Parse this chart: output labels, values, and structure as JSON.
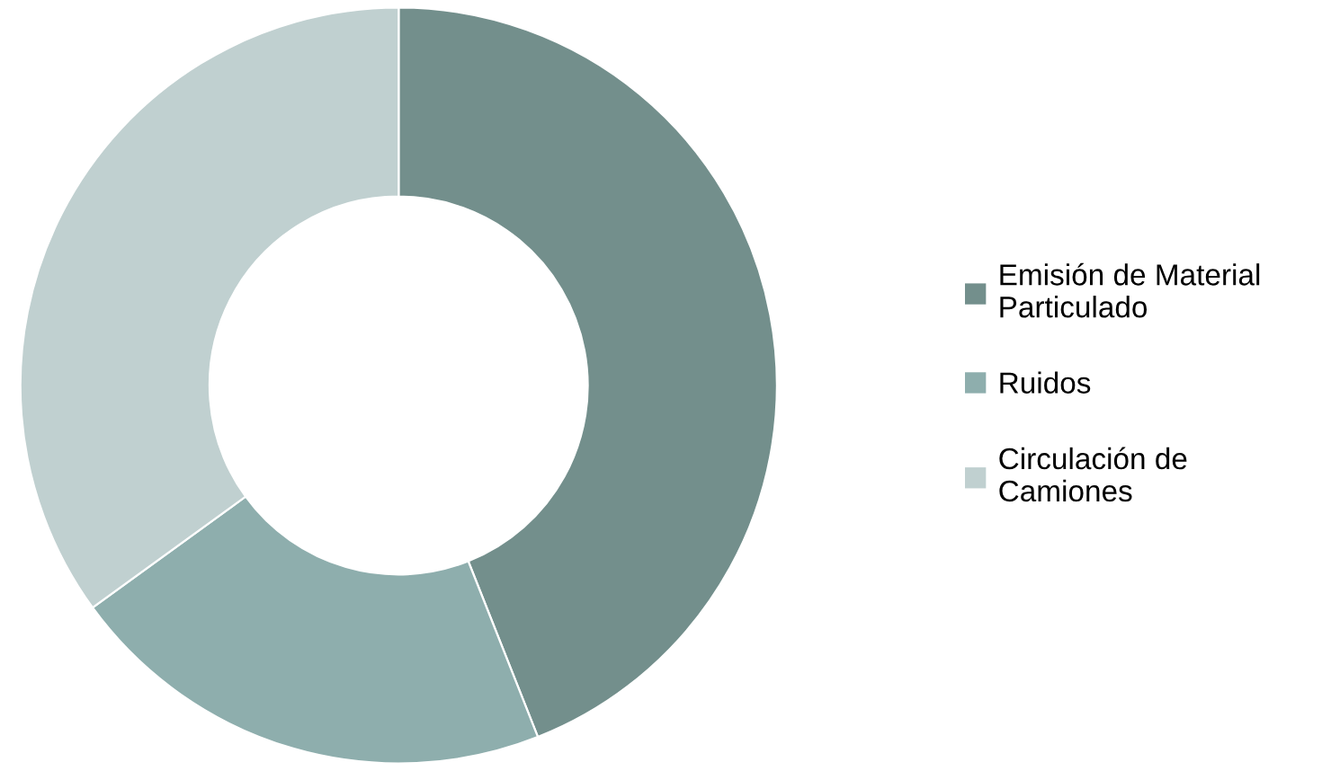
{
  "chart_data": {
    "type": "donut",
    "categories": [
      "Emisión de Material Particulado",
      "Ruidos",
      "Circulación de Camiones"
    ],
    "values": [
      44,
      21,
      35
    ],
    "colors": [
      "#738f8c",
      "#8eaead",
      "#c0d0d0"
    ],
    "legend": "right"
  }
}
